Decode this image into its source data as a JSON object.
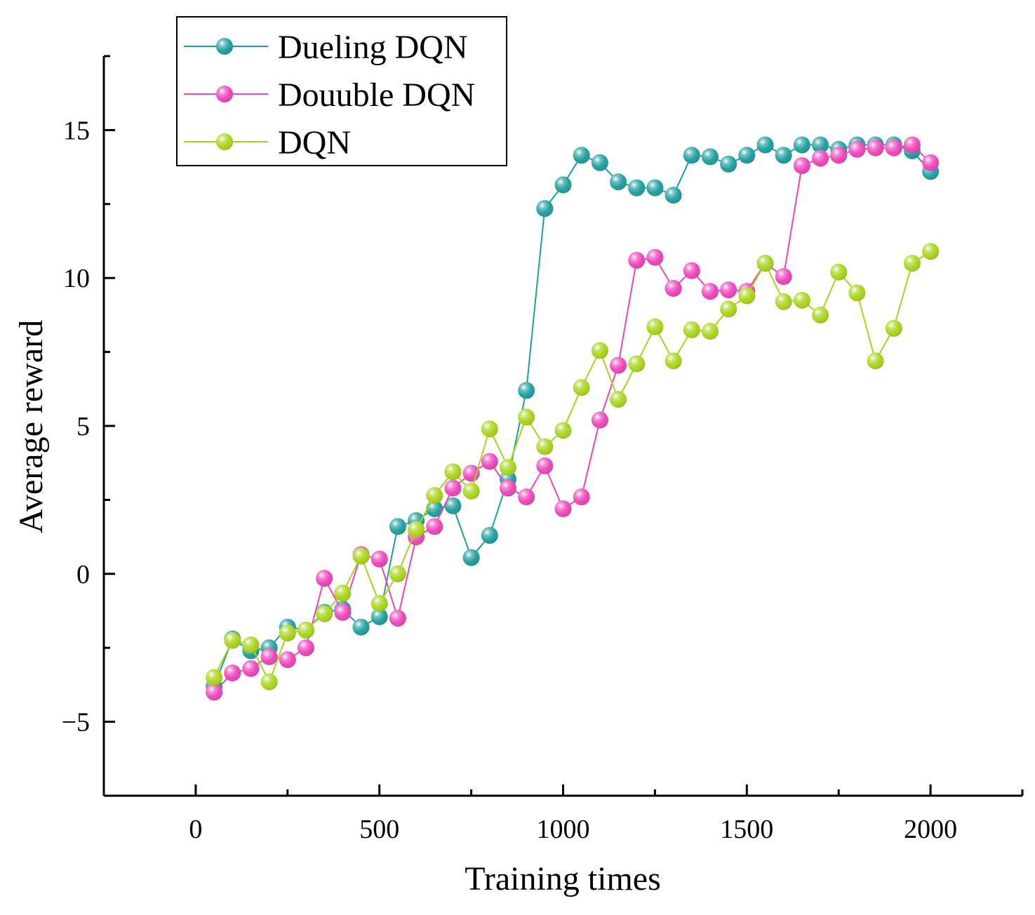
{
  "chart_data": {
    "type": "line",
    "title": "",
    "xlabel": "Training times",
    "ylabel": "Average reward",
    "xlim": [
      -250,
      2250
    ],
    "ylim": [
      -7.5,
      17.5
    ],
    "x_ticks": [
      0,
      500,
      1000,
      1500,
      2000
    ],
    "x_tick_labels": [
      "0",
      "500",
      "1000",
      "1500",
      "2000"
    ],
    "y_ticks": [
      -5,
      0,
      5,
      10,
      15
    ],
    "y_tick_labels": [
      "−5",
      "0",
      "5",
      "10",
      "15"
    ],
    "grid": false,
    "legend_position": "top-left",
    "x": [
      50,
      100,
      150,
      200,
      250,
      300,
      350,
      400,
      450,
      500,
      550,
      600,
      650,
      700,
      750,
      800,
      850,
      900,
      950,
      1000,
      1050,
      1100,
      1150,
      1200,
      1250,
      1300,
      1350,
      1400,
      1450,
      1500,
      1550,
      1600,
      1650,
      1700,
      1750,
      1800,
      1850,
      1900,
      1950,
      2000
    ],
    "series": [
      {
        "name": "Dueling DQN",
        "color": "#1f9e9e",
        "values": [
          -3.8,
          -2.2,
          -2.6,
          -2.5,
          -1.8,
          -1.9,
          -1.3,
          -1.2,
          -1.8,
          -1.45,
          1.6,
          1.8,
          2.2,
          2.3,
          0.55,
          1.3,
          3.2,
          6.2,
          12.35,
          13.15,
          14.15,
          13.9,
          13.25,
          13.05,
          13.05,
          12.8,
          14.15,
          14.1,
          13.85,
          14.15,
          14.5,
          14.15,
          14.5,
          14.5,
          14.35,
          14.5,
          14.5,
          14.5,
          14.3,
          13.6
        ]
      },
      {
        "name": "Douuble DQN",
        "color": "#ee44bb",
        "values": [
          -4.0,
          -3.35,
          -3.2,
          -2.8,
          -2.9,
          -2.5,
          -0.15,
          -1.3,
          0.65,
          0.5,
          -1.5,
          1.25,
          1.6,
          2.9,
          3.4,
          3.8,
          2.9,
          2.6,
          3.65,
          2.2,
          2.6,
          5.2,
          7.05,
          10.6,
          10.7,
          9.65,
          10.25,
          9.55,
          9.6,
          9.55,
          10.5,
          10.05,
          13.8,
          14.05,
          14.15,
          14.35,
          14.4,
          14.4,
          14.5,
          13.9
        ]
      },
      {
        "name": "DQN",
        "color": "#a8d41a",
        "values": [
          -3.5,
          -2.25,
          -2.4,
          -3.65,
          -2.0,
          -1.9,
          -1.35,
          -0.65,
          0.6,
          -1.0,
          0.0,
          1.5,
          2.65,
          3.45,
          2.8,
          4.9,
          3.6,
          5.3,
          4.3,
          4.85,
          6.3,
          7.55,
          5.9,
          7.1,
          8.35,
          7.2,
          8.25,
          8.2,
          8.95,
          9.4,
          10.5,
          9.2,
          9.25,
          8.75,
          10.2,
          9.5,
          7.2,
          8.3,
          10.5,
          10.9
        ]
      }
    ]
  }
}
